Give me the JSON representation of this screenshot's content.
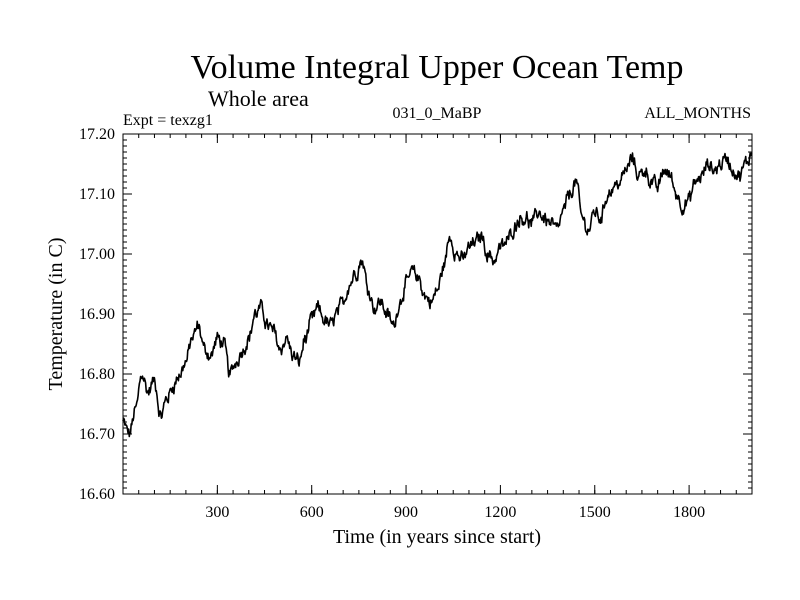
{
  "chart_data": {
    "type": "line",
    "title": "Volume Integral Upper Ocean Temp",
    "subtitle": "Whole area",
    "header_left": "Expt = texzg1",
    "header_center": "031_0_MaBP",
    "header_right": "ALL_MONTHS",
    "xlabel": "Time (in years since start)",
    "ylabel": "Temperature (in C)",
    "xlim": [
      0,
      2000
    ],
    "ylim": [
      16.6,
      17.2
    ],
    "x_ticks": [
      300,
      600,
      900,
      1200,
      1500,
      1800
    ],
    "x_tick_labels": [
      "300",
      "600",
      "900",
      "1200",
      "1500",
      "1800"
    ],
    "y_ticks": [
      16.6,
      16.7,
      16.8,
      16.9,
      17.0,
      17.1,
      17.2
    ],
    "y_tick_labels": [
      "16.60",
      "16.70",
      "16.80",
      "16.90",
      "17.00",
      "17.10",
      "17.20"
    ],
    "grid": false,
    "series": [
      {
        "name": "texzg1",
        "x": [
          0,
          20,
          40,
          60,
          80,
          100,
          120,
          140,
          160,
          180,
          200,
          220,
          240,
          260,
          280,
          300,
          320,
          340,
          360,
          380,
          400,
          420,
          440,
          460,
          480,
          500,
          520,
          540,
          560,
          580,
          600,
          620,
          640,
          660,
          680,
          700,
          720,
          740,
          760,
          780,
          800,
          820,
          840,
          860,
          880,
          900,
          920,
          940,
          960,
          980,
          1000,
          1020,
          1040,
          1060,
          1080,
          1100,
          1120,
          1140,
          1160,
          1180,
          1200,
          1220,
          1240,
          1260,
          1280,
          1300,
          1320,
          1340,
          1360,
          1380,
          1400,
          1420,
          1440,
          1460,
          1480,
          1500,
          1520,
          1540,
          1560,
          1580,
          1600,
          1620,
          1640,
          1660,
          1680,
          1700,
          1720,
          1740,
          1760,
          1780,
          1800,
          1820,
          1840,
          1860,
          1880,
          1900,
          1920,
          1940,
          1960,
          1980,
          2000
        ],
        "values": [
          16.72,
          16.7,
          16.74,
          16.8,
          16.77,
          16.79,
          16.73,
          16.76,
          16.78,
          16.8,
          16.82,
          16.86,
          16.88,
          16.84,
          16.83,
          16.86,
          16.85,
          16.8,
          16.82,
          16.84,
          16.86,
          16.9,
          16.91,
          16.88,
          16.87,
          16.84,
          16.86,
          16.83,
          16.82,
          16.86,
          16.89,
          16.91,
          16.89,
          16.88,
          16.9,
          16.92,
          16.95,
          16.97,
          16.99,
          16.94,
          16.91,
          16.92,
          16.9,
          16.88,
          16.92,
          16.95,
          16.97,
          16.96,
          16.93,
          16.92,
          16.94,
          16.98,
          17.03,
          17.0,
          16.99,
          17.01,
          17.02,
          17.03,
          17.0,
          16.99,
          17.01,
          17.02,
          17.04,
          17.06,
          17.06,
          17.05,
          17.07,
          17.06,
          17.05,
          17.04,
          17.07,
          17.1,
          17.12,
          17.06,
          17.04,
          17.07,
          17.06,
          17.1,
          17.11,
          17.12,
          17.14,
          17.16,
          17.13,
          17.14,
          17.12,
          17.11,
          17.14,
          17.13,
          17.1,
          17.08,
          17.09,
          17.12,
          17.13,
          17.15,
          17.14,
          17.15,
          17.16,
          17.14,
          17.13,
          17.15,
          17.17
        ]
      }
    ]
  }
}
